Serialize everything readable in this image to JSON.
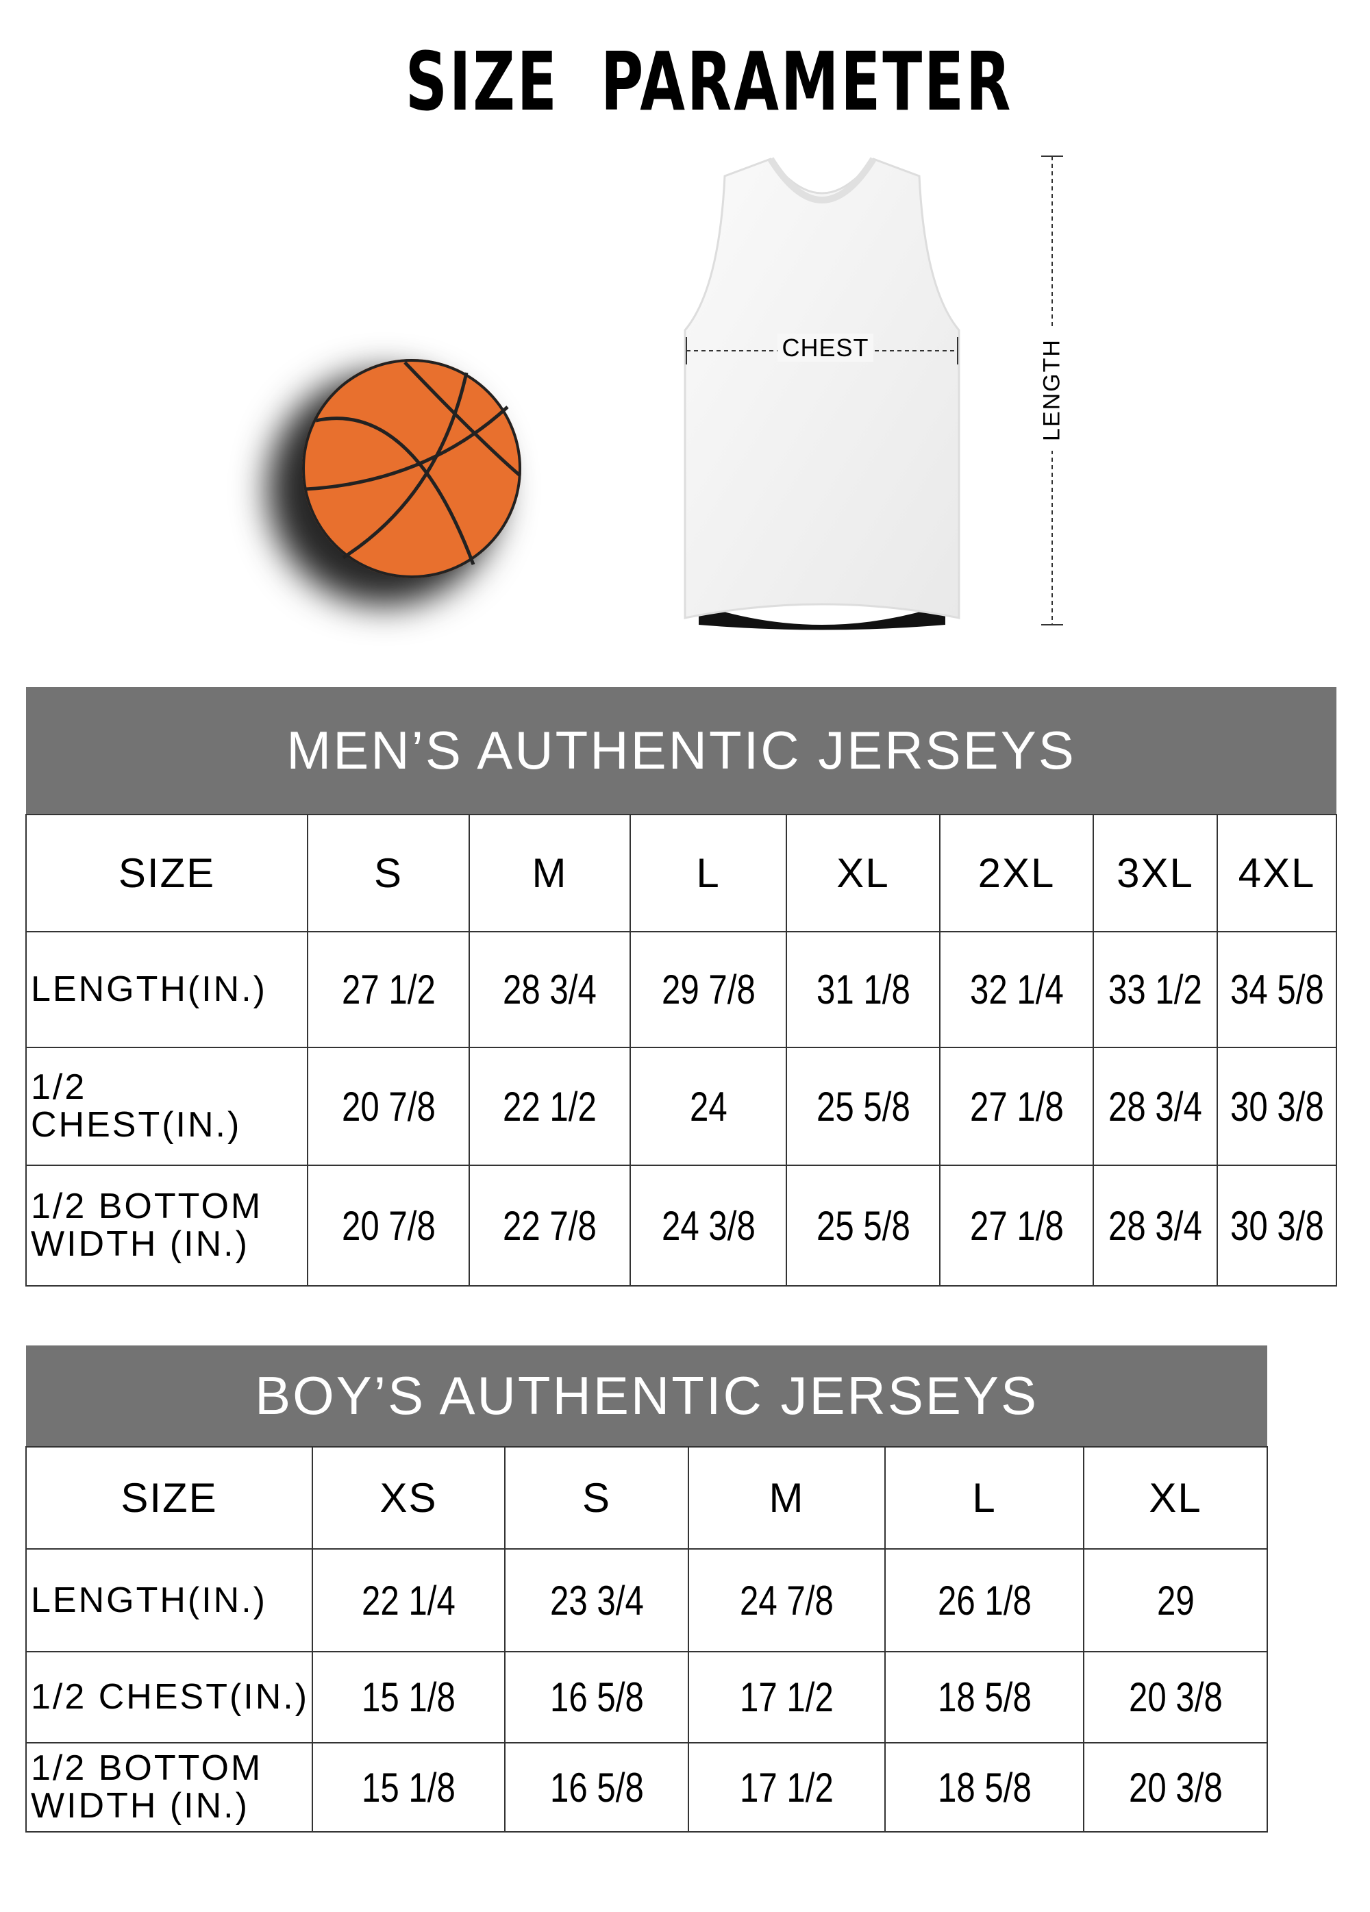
{
  "title": "SIZE PARAMETER",
  "illustration": {
    "chest_label": "CHEST",
    "length_label": "LENGTH",
    "ball_color": "#e8702e"
  },
  "mens": {
    "title": "MEN’S AUTHENTIC JERSEYS",
    "header_color": "#737373",
    "size_label": "SIZE",
    "sizes": [
      "S",
      "M",
      "L",
      "XL",
      "2XL",
      "3XL",
      "4XL"
    ],
    "rows": [
      {
        "label": "LENGTH(IN.)",
        "values": [
          "27  1/2",
          "28  3/4",
          "29  7/8",
          "31  1/8",
          "32  1/4",
          "33  1/2",
          "34  5/8"
        ]
      },
      {
        "label": "1/2 CHEST(IN.)",
        "values": [
          "20  7/8",
          "22  1/2",
          "24",
          "25  5/8",
          "27  1/8",
          "28  3/4",
          "30  3/8"
        ]
      },
      {
        "label": "1/2 BOTTOM\n WIDTH  (IN.)",
        "values": [
          "20  7/8",
          "22  7/8",
          "24  3/8",
          "25  5/8",
          "27  1/8",
          "28  3/4",
          "30  3/8"
        ]
      }
    ]
  },
  "boys": {
    "title": "BOY’S AUTHENTIC JERSEYS",
    "header_color": "#737373",
    "size_label": "SIZE",
    "sizes": [
      "XS",
      "S",
      "M",
      "L",
      "XL"
    ],
    "rows": [
      {
        "label": "LENGTH(IN.)",
        "values": [
          "22  1/4",
          "23  3/4",
          "24  7/8",
          "26  1/8",
          "29"
        ]
      },
      {
        "label": "1/2 CHEST(IN.)",
        "values": [
          "15  1/8",
          "16  5/8",
          "17  1/2",
          "18  5/8",
          "20  3/8"
        ]
      },
      {
        "label": " 1/2 BOTTOM\n  WIDTH  (IN.)",
        "values": [
          "15  1/8",
          "16  5/8",
          "17  1/2",
          "18  5/8",
          "20  3/8"
        ]
      }
    ]
  }
}
